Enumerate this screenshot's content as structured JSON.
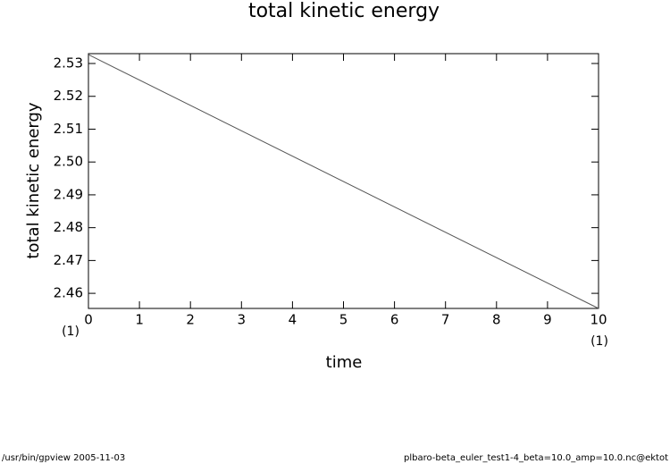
{
  "chart_data": {
    "type": "line",
    "title": "total kinetic energy",
    "x_label": "time",
    "y_label": "total kinetic energy",
    "x": [
      0,
      10
    ],
    "series": [
      {
        "name": "total kinetic energy",
        "color": "#555555",
        "values": [
          2.5327,
          2.4554
        ]
      }
    ],
    "xlim": [
      0,
      10
    ],
    "xticks": [
      0,
      1,
      2,
      3,
      4,
      5,
      6,
      7,
      8,
      9,
      10
    ],
    "ylim": [
      2.4554,
      2.533
    ],
    "yticks": [
      2.46,
      2.47,
      2.48,
      2.49,
      {
        "value": 2.5,
        "label": "2.50"
      },
      2.51,
      2.52,
      2.53
    ],
    "x_unit_left": "(1)",
    "x_unit_right": "(1)",
    "footer_left": "/usr/bin/gpview   2005-11-03",
    "footer_right": "plbaro-beta_euler_test1-4_beta=10.0_amp=10.0.nc@ektot",
    "grid": false
  }
}
